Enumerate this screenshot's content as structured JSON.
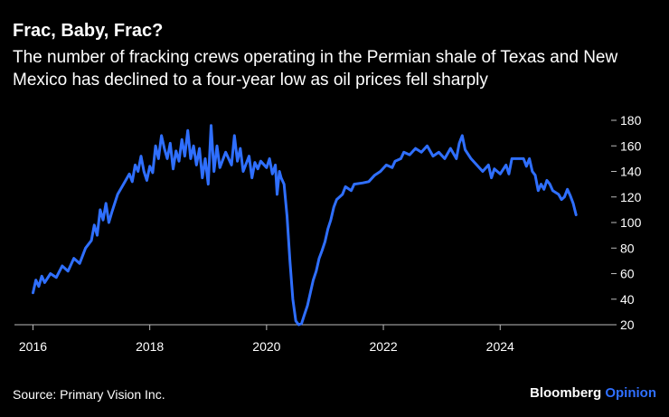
{
  "title": "Frac, Baby, Frac?",
  "subtitle": "The number of fracking crews operating in the Permian shale of Texas and New Mexico has declined to a four-year low as oil prices fell sharply",
  "source": "Source: Primary Vision Inc.",
  "brand": {
    "part1": "Bloomberg",
    "part2": "Opinion"
  },
  "colors": {
    "background": "#000000",
    "line": "#2f6fff",
    "text": "#ffffff",
    "gridline": "#555555"
  },
  "chart_data": {
    "type": "line",
    "title": "",
    "xlabel": "",
    "ylabel": "",
    "xlim": [
      2015.9,
      2025.9
    ],
    "ylim": [
      20,
      180
    ],
    "x_ticks": [
      2016,
      2018,
      2020,
      2022,
      2024
    ],
    "y_ticks": [
      20,
      40,
      60,
      80,
      100,
      120,
      140,
      160,
      180
    ],
    "y_axis_position": "right",
    "grid": false,
    "legend": "none",
    "series": [
      {
        "color": "#2f6fff",
        "points": [
          [
            2016.0,
            45
          ],
          [
            2016.05,
            55
          ],
          [
            2016.1,
            50
          ],
          [
            2016.15,
            58
          ],
          [
            2016.2,
            53
          ],
          [
            2016.3,
            60
          ],
          [
            2016.4,
            57
          ],
          [
            2016.5,
            66
          ],
          [
            2016.6,
            62
          ],
          [
            2016.7,
            72
          ],
          [
            2016.8,
            68
          ],
          [
            2016.9,
            80
          ],
          [
            2017.0,
            86
          ],
          [
            2017.05,
            98
          ],
          [
            2017.1,
            90
          ],
          [
            2017.15,
            110
          ],
          [
            2017.2,
            102
          ],
          [
            2017.25,
            115
          ],
          [
            2017.3,
            100
          ],
          [
            2017.35,
            108
          ],
          [
            2017.45,
            122
          ],
          [
            2017.55,
            130
          ],
          [
            2017.65,
            138
          ],
          [
            2017.7,
            132
          ],
          [
            2017.75,
            145
          ],
          [
            2017.8,
            140
          ],
          [
            2017.85,
            152
          ],
          [
            2017.9,
            140
          ],
          [
            2017.95,
            133
          ],
          [
            2018.0,
            144
          ],
          [
            2018.05,
            139
          ],
          [
            2018.1,
            160
          ],
          [
            2018.15,
            150
          ],
          [
            2018.2,
            168
          ],
          [
            2018.25,
            158
          ],
          [
            2018.3,
            150
          ],
          [
            2018.35,
            162
          ],
          [
            2018.4,
            142
          ],
          [
            2018.45,
            156
          ],
          [
            2018.5,
            148
          ],
          [
            2018.55,
            165
          ],
          [
            2018.6,
            152
          ],
          [
            2018.65,
            172
          ],
          [
            2018.7,
            150
          ],
          [
            2018.75,
            160
          ],
          [
            2018.8,
            145
          ],
          [
            2018.85,
            158
          ],
          [
            2018.9,
            135
          ],
          [
            2018.95,
            150
          ],
          [
            2019.0,
            130
          ],
          [
            2019.05,
            176
          ],
          [
            2019.1,
            140
          ],
          [
            2019.15,
            160
          ],
          [
            2019.2,
            143
          ],
          [
            2019.3,
            155
          ],
          [
            2019.4,
            145
          ],
          [
            2019.45,
            168
          ],
          [
            2019.5,
            148
          ],
          [
            2019.55,
            158
          ],
          [
            2019.6,
            140
          ],
          [
            2019.7,
            152
          ],
          [
            2019.75,
            135
          ],
          [
            2019.8,
            147
          ],
          [
            2019.85,
            142
          ],
          [
            2019.9,
            148
          ],
          [
            2020.0,
            143
          ],
          [
            2020.05,
            150
          ],
          [
            2020.1,
            138
          ],
          [
            2020.15,
            145
          ],
          [
            2020.18,
            122
          ],
          [
            2020.22,
            140
          ],
          [
            2020.25,
            135
          ],
          [
            2020.3,
            130
          ],
          [
            2020.35,
            105
          ],
          [
            2020.4,
            70
          ],
          [
            2020.45,
            40
          ],
          [
            2020.5,
            23
          ],
          [
            2020.55,
            20
          ],
          [
            2020.6,
            21
          ],
          [
            2020.65,
            28
          ],
          [
            2020.7,
            35
          ],
          [
            2020.75,
            45
          ],
          [
            2020.8,
            55
          ],
          [
            2020.85,
            62
          ],
          [
            2020.9,
            72
          ],
          [
            2020.95,
            78
          ],
          [
            2021.0,
            85
          ],
          [
            2021.05,
            95
          ],
          [
            2021.1,
            102
          ],
          [
            2021.15,
            112
          ],
          [
            2021.2,
            118
          ],
          [
            2021.3,
            122
          ],
          [
            2021.35,
            128
          ],
          [
            2021.45,
            125
          ],
          [
            2021.5,
            130
          ],
          [
            2021.65,
            131
          ],
          [
            2021.75,
            132
          ],
          [
            2021.85,
            137
          ],
          [
            2021.95,
            140
          ],
          [
            2022.05,
            145
          ],
          [
            2022.15,
            143
          ],
          [
            2022.2,
            148
          ],
          [
            2022.3,
            150
          ],
          [
            2022.35,
            155
          ],
          [
            2022.45,
            153
          ],
          [
            2022.55,
            158
          ],
          [
            2022.65,
            155
          ],
          [
            2022.75,
            160
          ],
          [
            2022.85,
            152
          ],
          [
            2022.95,
            155
          ],
          [
            2023.05,
            150
          ],
          [
            2023.15,
            158
          ],
          [
            2023.25,
            150
          ],
          [
            2023.3,
            162
          ],
          [
            2023.35,
            168
          ],
          [
            2023.4,
            157
          ],
          [
            2023.5,
            150
          ],
          [
            2023.6,
            145
          ],
          [
            2023.7,
            140
          ],
          [
            2023.8,
            145
          ],
          [
            2023.85,
            135
          ],
          [
            2023.9,
            142
          ],
          [
            2024.0,
            138
          ],
          [
            2024.1,
            145
          ],
          [
            2024.15,
            138
          ],
          [
            2024.2,
            150
          ],
          [
            2024.3,
            150
          ],
          [
            2024.4,
            150
          ],
          [
            2024.45,
            144
          ],
          [
            2024.5,
            150
          ],
          [
            2024.55,
            140
          ],
          [
            2024.6,
            137
          ],
          [
            2024.65,
            125
          ],
          [
            2024.7,
            130
          ],
          [
            2024.75,
            126
          ],
          [
            2024.8,
            133
          ],
          [
            2024.85,
            130
          ],
          [
            2024.9,
            125
          ],
          [
            2025.0,
            122
          ],
          [
            2025.05,
            118
          ],
          [
            2025.1,
            120
          ],
          [
            2025.15,
            126
          ],
          [
            2025.2,
            121
          ],
          [
            2025.25,
            115
          ],
          [
            2025.3,
            106
          ]
        ]
      }
    ]
  }
}
